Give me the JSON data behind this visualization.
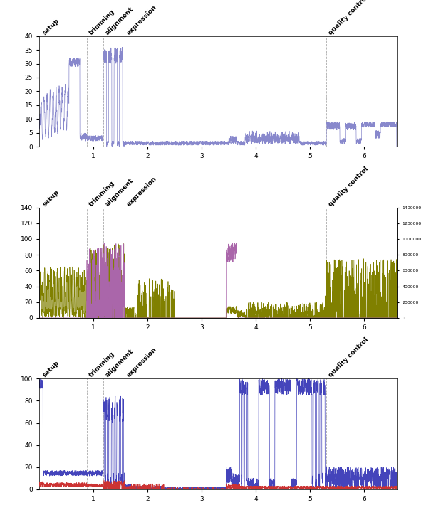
{
  "phase_labels": [
    "setup",
    "trimming",
    "alignment",
    "expression",
    "quality control"
  ],
  "phase_positions": [
    0.02,
    0.88,
    1.18,
    1.58,
    5.3
  ],
  "xmin": 0,
  "xmax": 6.6,
  "panel1": {
    "ylim": [
      0,
      40
    ],
    "yticks": [
      0,
      5,
      10,
      15,
      20,
      25,
      30,
      35,
      40
    ],
    "color": "#8888cc",
    "linewidth": 0.5
  },
  "panel2": {
    "ylim": [
      0,
      140
    ],
    "yticks": [
      0,
      20,
      40,
      60,
      80,
      100,
      120,
      140
    ],
    "color_main": "#808000",
    "color_secondary": "#aa66aa",
    "linewidth": 0.5,
    "right_yticks": [
      0,
      20,
      40,
      60,
      80,
      100,
      120,
      140
    ],
    "right_yticklabels": [
      "0",
      "200000",
      "400000",
      "600000",
      "800000",
      "1000000",
      "1200000",
      "1400000"
    ]
  },
  "panel3": {
    "ylim": [
      0,
      100
    ],
    "yticks": [
      0,
      20,
      40,
      60,
      80,
      100
    ],
    "color_blue": "#4444bb",
    "color_red": "#cc3333",
    "linewidth": 0.5
  },
  "xticks": [
    1,
    2,
    3,
    4,
    5,
    6
  ],
  "background_color": "#ffffff",
  "dashed_color": "#aaaaaa",
  "label_fontsize": 6.5,
  "tick_fontsize": 6.5
}
